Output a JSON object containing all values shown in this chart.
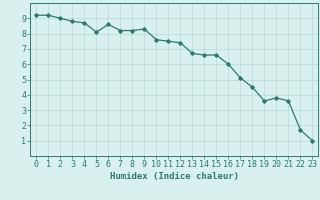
{
  "x": [
    0,
    1,
    2,
    3,
    4,
    5,
    6,
    7,
    8,
    9,
    10,
    11,
    12,
    13,
    14,
    15,
    16,
    17,
    18,
    19,
    20,
    21,
    22,
    23
  ],
  "y": [
    9.2,
    9.2,
    9.0,
    8.8,
    8.7,
    8.1,
    8.6,
    8.2,
    8.2,
    8.3,
    7.6,
    7.5,
    7.4,
    6.7,
    6.6,
    6.6,
    6.0,
    5.1,
    4.5,
    3.6,
    3.8,
    3.6,
    1.7,
    1.0
  ],
  "line_color": "#2e7b6e",
  "marker": "D",
  "marker_size": 1.8,
  "line_width": 0.9,
  "bg_color": "#d8f0ee",
  "grid_color": "#b8d8d4",
  "xlabel": "Humidex (Indice chaleur)",
  "xlabel_fontsize": 6.5,
  "tick_fontsize": 6.0,
  "xlim": [
    -0.5,
    23.5
  ],
  "ylim": [
    0,
    10
  ],
  "yticks": [
    1,
    2,
    3,
    4,
    5,
    6,
    7,
    8,
    9
  ],
  "xticks": [
    0,
    1,
    2,
    3,
    4,
    5,
    6,
    7,
    8,
    9,
    10,
    11,
    12,
    13,
    14,
    15,
    16,
    17,
    18,
    19,
    20,
    21,
    22,
    23
  ]
}
